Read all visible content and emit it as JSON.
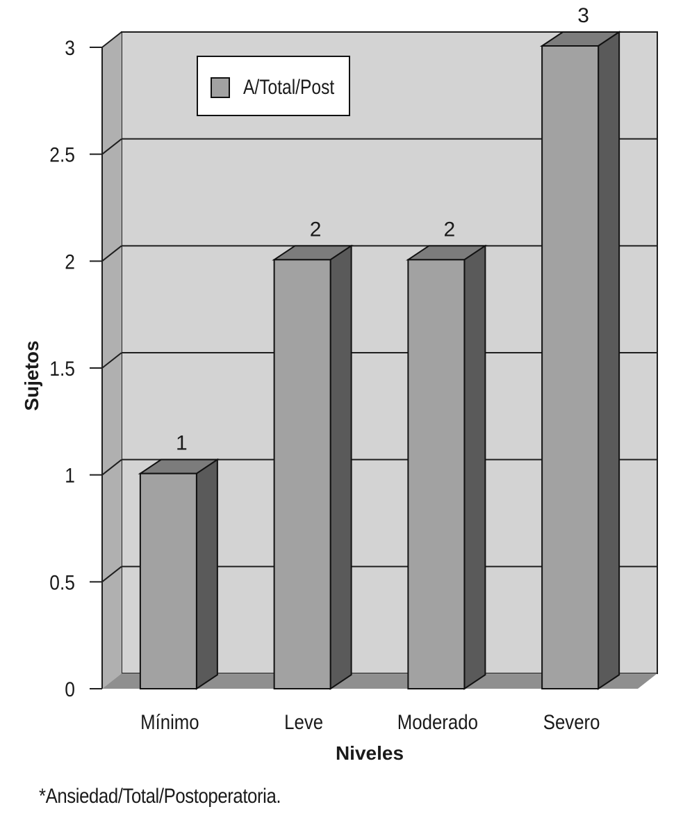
{
  "chart_data": {
    "type": "bar",
    "categories": [
      "Mínimo",
      "Leve",
      "Moderado",
      "Severo"
    ],
    "series": [
      {
        "name": "A/Total/Post",
        "values": [
          1,
          2,
          2,
          3
        ]
      }
    ],
    "data_labels": [
      "1",
      "2",
      "2",
      "3"
    ],
    "xlabel": "Niveles",
    "ylabel": "Sujetos",
    "ylim": [
      0,
      3
    ],
    "yticks": [
      "0",
      "0.5",
      "1",
      "1.5",
      "2",
      "2.5",
      "3"
    ],
    "grid": true,
    "legend_position": "top-left",
    "style": "3d-bar",
    "colors": {
      "wall": "#d3d3d3",
      "side_wall": "#b0b0b0",
      "floor": "#8f8f8f",
      "bar_front": "#a2a2a2",
      "bar_top": "#7c7c7c",
      "bar_side": "#5a5a5a",
      "grid": "#1e1e1e"
    }
  },
  "footnote": "*Ansiedad/Total/Postoperatoria."
}
